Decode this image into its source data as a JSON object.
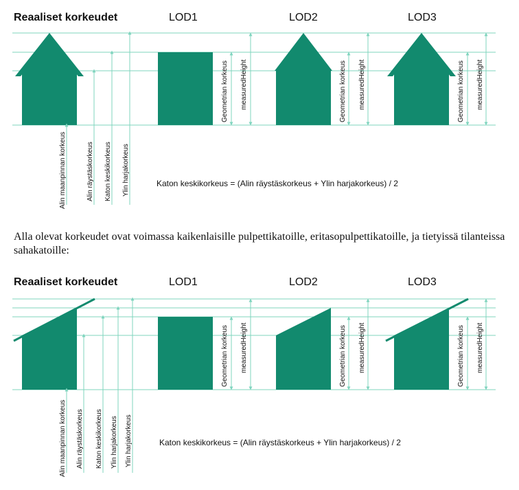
{
  "colors": {
    "fill": "#128a6e",
    "guide": "#7fd4be",
    "text": "#111111"
  },
  "section1": {
    "title_real": "Reaaliset korkeudet",
    "title_lod1": "LOD1",
    "title_lod2": "LOD2",
    "title_lod3": "LOD3",
    "labels": {
      "ground": "Alin maanpinnan korkeus",
      "eaves": "Alin räystäskorkeus",
      "avg": "Katon keskikorkeus",
      "ridge": "Ylin harjakorkeus",
      "geom": "Geometrian korkeus",
      "measured": "measuredHeight"
    },
    "formula": "Katon keskikorkeus = (Alin räystäskorkeus + Ylin harjakorkeus) / 2"
  },
  "paragraph": "Alla olevat korkeudet ovat voimassa kaikenlaisille pulpettikatoille, eritasopulpettikatoille, ja tietyissä tilanteissa sahakatoille:",
  "section2": {
    "title_real": "Reaaliset korkeudet",
    "title_lod1": "LOD1",
    "title_lod2": "LOD2",
    "title_lod3": "LOD3",
    "labels": {
      "ground": "Alin maanpinnan korkeus",
      "eaves": "Alin räystäskorkeus",
      "avg": "Katon keskikorkeus",
      "ridge": "Ylin harjakorkeus",
      "geom": "Geometrian korkeus",
      "measured": "measuredHeight"
    },
    "formula": "Katon keskikorkeus = (Alin räystäskorkeus + Ylin harjakorkeus) / 2"
  }
}
